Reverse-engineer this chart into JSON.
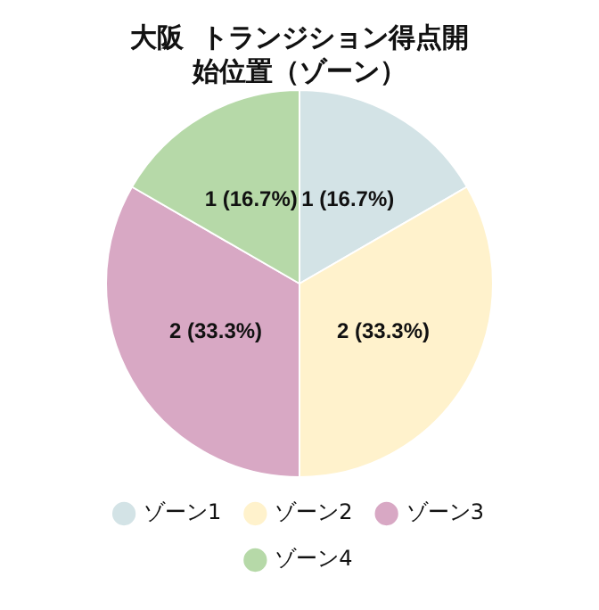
{
  "chart_data": {
    "type": "pie",
    "title": "大阪  トランジション得点開始位置（ゾーン）",
    "categories": [
      "ゾーン1",
      "ゾーン2",
      "ゾーン3",
      "ゾーン4"
    ],
    "values": [
      1,
      2,
      2,
      1
    ],
    "colors": [
      "#d3e3e6",
      "#fff2cc",
      "#d8a8c4",
      "#b6d9a8"
    ],
    "value_labels": [
      "1 (16.7%)",
      "2 (33.3%)",
      "2 (33.3%)",
      "1 (16.7%)"
    ],
    "legend": "bottom"
  }
}
